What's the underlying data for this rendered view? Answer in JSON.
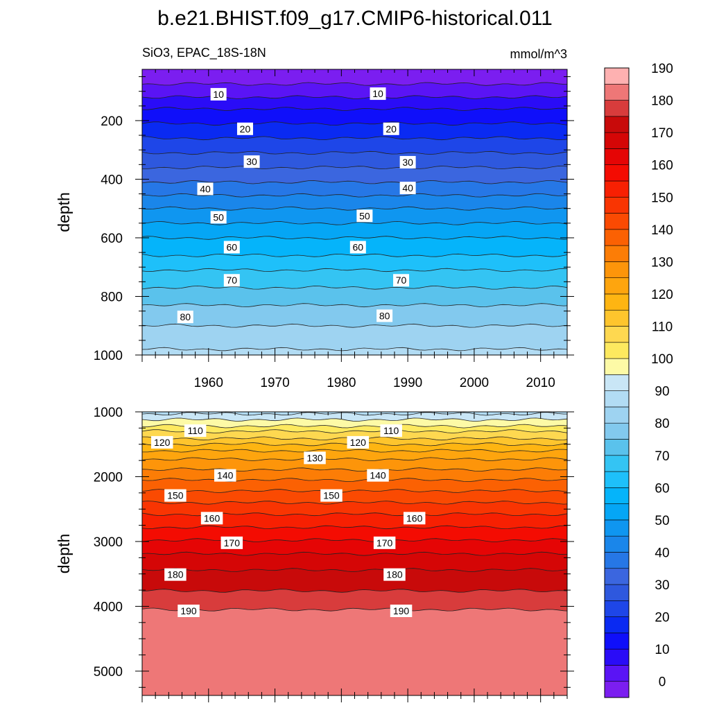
{
  "title": "b.e21.BHIST.f09_g17.CMIP6-historical.011",
  "subtitle_left": "SiO3, EPAC_18S-18N",
  "subtitle_right": "mmol/m^3",
  "chart_data": [
    {
      "type": "heatmap",
      "panel": "upper",
      "variable": "SiO3",
      "region": "EPAC_18S-18N",
      "units": "mmol/m^3",
      "xlabel": "",
      "ylabel": "depth",
      "xlim": [
        1950,
        2014
      ],
      "ylim": [
        1000,
        25
      ],
      "y_inverted": true,
      "x_ticks": [
        1960,
        1970,
        1980,
        1990,
        2000,
        2010
      ],
      "y_ticks": [
        200,
        400,
        600,
        800,
        1000
      ],
      "contour_interval": 5,
      "contours_depth_by_level": {
        "5": 75,
        "10": 120,
        "15": 160,
        "20": 210,
        "25": 260,
        "30": 310,
        "35": 360,
        "40": 410,
        "45": 455,
        "50": 500,
        "55": 550,
        "60": 600,
        "65": 660,
        "70": 710,
        "75": 770,
        "80": 830,
        "85": 900,
        "90": 980
      },
      "contour_labels": [
        {
          "text": "10",
          "x": 1961.5,
          "depth": 110
        },
        {
          "text": "10",
          "x": 1985.5,
          "depth": 108
        },
        {
          "text": "20",
          "x": 1965.5,
          "depth": 228
        },
        {
          "text": "20",
          "x": 1987.5,
          "depth": 228
        },
        {
          "text": "30",
          "x": 1966.5,
          "depth": 340
        },
        {
          "text": "30",
          "x": 1990,
          "depth": 342
        },
        {
          "text": "40",
          "x": 1959.5,
          "depth": 433
        },
        {
          "text": "40",
          "x": 1990,
          "depth": 430
        },
        {
          "text": "50",
          "x": 1961.5,
          "depth": 530
        },
        {
          "text": "50",
          "x": 1983.5,
          "depth": 525
        },
        {
          "text": "60",
          "x": 1963.5,
          "depth": 632
        },
        {
          "text": "60",
          "x": 1982.5,
          "depth": 632
        },
        {
          "text": "70",
          "x": 1963.5,
          "depth": 745
        },
        {
          "text": "70",
          "x": 1989,
          "depth": 745
        },
        {
          "text": "80",
          "x": 1956.5,
          "depth": 870
        },
        {
          "text": "80",
          "x": 1986.5,
          "depth": 866
        }
      ]
    },
    {
      "type": "heatmap",
      "panel": "lower",
      "variable": "SiO3",
      "region": "EPAC_18S-18N",
      "units": "mmol/m^3",
      "xlabel": "",
      "ylabel": "depth",
      "xlim": [
        1950,
        2014
      ],
      "ylim": [
        5375,
        1000
      ],
      "y_inverted": true,
      "x_ticks": [
        1960,
        1970,
        1980,
        1990,
        2000,
        2010
      ],
      "y_ticks": [
        1000,
        2000,
        3000,
        4000,
        5000
      ],
      "contour_interval": 5,
      "contours_depth_by_level": {
        "95": 1030,
        "100": 1120,
        "105": 1220,
        "110": 1300,
        "115": 1410,
        "120": 1500,
        "125": 1600,
        "130": 1730,
        "135": 1890,
        "140": 2050,
        "145": 2220,
        "150": 2400,
        "155": 2580,
        "160": 2780,
        "165": 2980,
        "170": 3190,
        "175": 3440,
        "180": 3760,
        "185": 4050
      },
      "contour_labels": [
        {
          "text": "110",
          "x": 1958,
          "depth": 1290
        },
        {
          "text": "110",
          "x": 1987.5,
          "depth": 1290
        },
        {
          "text": "120",
          "x": 1953,
          "depth": 1470
        },
        {
          "text": "120",
          "x": 1982.5,
          "depth": 1470
        },
        {
          "text": "130",
          "x": 1976,
          "depth": 1710
        },
        {
          "text": "140",
          "x": 1962.5,
          "depth": 1980
        },
        {
          "text": "140",
          "x": 1985.5,
          "depth": 1980
        },
        {
          "text": "150",
          "x": 1955,
          "depth": 2290
        },
        {
          "text": "150",
          "x": 1978.5,
          "depth": 2290
        },
        {
          "text": "160",
          "x": 1960.5,
          "depth": 2640
        },
        {
          "text": "160",
          "x": 1991,
          "depth": 2640
        },
        {
          "text": "170",
          "x": 1963.5,
          "depth": 3020
        },
        {
          "text": "170",
          "x": 1986.5,
          "depth": 3020
        },
        {
          "text": "180",
          "x": 1955,
          "depth": 3510
        },
        {
          "text": "180",
          "x": 1988,
          "depth": 3510
        },
        {
          "text": "190",
          "x": 1957,
          "depth": 4070
        },
        {
          "text": "190",
          "x": 1989,
          "depth": 4070
        }
      ]
    }
  ],
  "colorbar": {
    "levels": [
      0,
      5,
      10,
      15,
      20,
      25,
      30,
      35,
      40,
      45,
      50,
      55,
      60,
      65,
      70,
      75,
      80,
      85,
      90,
      95,
      100,
      105,
      110,
      115,
      120,
      125,
      130,
      135,
      140,
      145,
      150,
      155,
      160,
      165,
      170,
      175,
      180,
      185,
      190
    ],
    "tick_labels": [
      "0",
      "10",
      "20",
      "30",
      "40",
      "50",
      "60",
      "70",
      "80",
      "90",
      "100",
      "110",
      "120",
      "130",
      "140",
      "150",
      "160",
      "170",
      "180",
      "190"
    ],
    "colors": [
      "#7b1ef0",
      "#5a14f5",
      "#2a0cf7",
      "#0f0ffa",
      "#0a2af2",
      "#1e46e8",
      "#2e58de",
      "#3b66df",
      "#2677e6",
      "#1a86ea",
      "#0f96f0",
      "#05a6f5",
      "#05b4fa",
      "#1ec0fa",
      "#34c4f3",
      "#5ac2ec",
      "#82c9ee",
      "#9ed3f1",
      "#b2dcf4",
      "#c9e6f6",
      "#fdfaa6",
      "#fde95f",
      "#fed850",
      "#fec52d",
      "#feb512",
      "#fea50e",
      "#fd950a",
      "#fc7d06",
      "#fb6103",
      "#fa4a02",
      "#f93502",
      "#f72002",
      "#f40c02",
      "#e50505",
      "#d50606",
      "#c80a0a",
      "#d83c3c",
      "#ee7777",
      "#feb1b1"
    ]
  }
}
